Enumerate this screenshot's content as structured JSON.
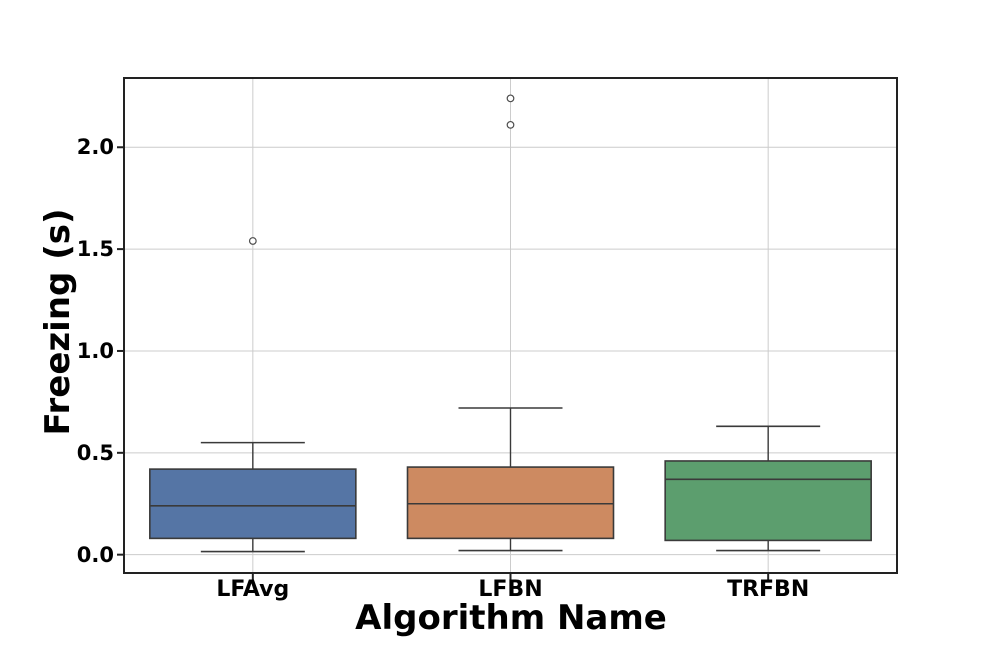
{
  "chart_data": {
    "type": "box",
    "title": "",
    "xlabel": "Algorithm Name",
    "ylabel": "Freezing (s)",
    "categories": [
      "LFAvg",
      "LFBN",
      "TRFBN"
    ],
    "yticks": [
      0.0,
      0.5,
      1.0,
      1.5,
      2.0
    ],
    "ytick_labels": [
      "0.0",
      "0.5",
      "1.0",
      "1.5",
      "2.0"
    ],
    "ylim": [
      -0.09,
      2.34
    ],
    "grid": true,
    "legend": "none",
    "series": [
      {
        "name": "LFAvg",
        "color": "#5575a5",
        "whisker_low": 0.015,
        "q1": 0.08,
        "median": 0.24,
        "q3": 0.42,
        "whisker_high": 0.55,
        "outliers": [
          1.54
        ]
      },
      {
        "name": "LFBN",
        "color": "#cd8a61",
        "whisker_low": 0.02,
        "q1": 0.08,
        "median": 0.25,
        "q3": 0.43,
        "whisker_high": 0.72,
        "outliers": [
          2.11,
          2.24
        ]
      },
      {
        "name": "TRFBN",
        "color": "#5c9e6e",
        "whisker_low": 0.02,
        "q1": 0.07,
        "median": 0.37,
        "q3": 0.46,
        "whisker_high": 0.63,
        "outliers": []
      }
    ],
    "colors": {
      "grid": "#cccccc",
      "spine": "#222222",
      "edge": "#3a3a3a",
      "flier": "#4d4d4d",
      "flier_fill": "#ffffff",
      "text": "#000000"
    }
  }
}
